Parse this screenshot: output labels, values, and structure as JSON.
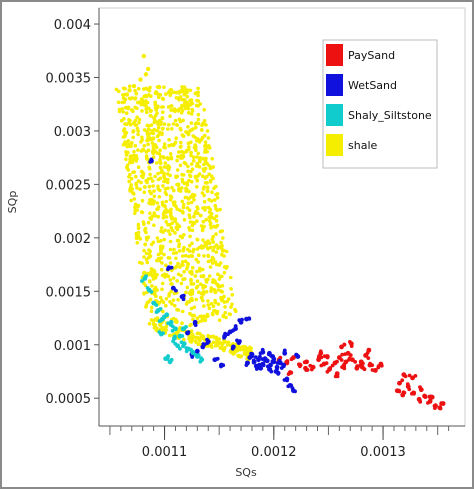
{
  "chart_data": {
    "type": "scatter",
    "xlabel": "SQs",
    "ylabel": "SQp",
    "xlim": [
      0.00104,
      0.001375
    ],
    "ylim": [
      0.00024,
      0.00415
    ],
    "xticks": [
      {
        "value": 0.0011,
        "label": "0.0011"
      },
      {
        "value": 0.0012,
        "label": "0.0012"
      },
      {
        "value": 0.0013,
        "label": "0.0013"
      }
    ],
    "yticks": [
      {
        "value": 0.0005,
        "label": "0.0005"
      },
      {
        "value": 0.001,
        "label": "0.001"
      },
      {
        "value": 0.0015,
        "label": "0.0015"
      },
      {
        "value": 0.002,
        "label": "0.002"
      },
      {
        "value": 0.0025,
        "label": "0.0025"
      },
      {
        "value": 0.003,
        "label": "0.003"
      },
      {
        "value": 0.0035,
        "label": "0.0035"
      },
      {
        "value": 0.004,
        "label": "0.004"
      }
    ],
    "grid": false,
    "legend_position": "top-right",
    "series": [
      {
        "name": "PaySand",
        "color": "#ee1111",
        "points": [
          [
            0.001205,
            0.00086
          ],
          [
            0.001212,
            0.00083
          ],
          [
            0.001218,
            0.00088
          ],
          [
            0.001224,
            0.00081
          ],
          [
            0.00123,
            0.00084
          ],
          [
            0.001236,
            0.00079
          ],
          [
            0.001241,
            0.00086
          ],
          [
            0.001246,
            0.00082
          ],
          [
            0.001251,
            0.00077
          ],
          [
            0.001256,
            0.00083
          ],
          [
            0.00126,
            0.00088
          ],
          [
            0.001264,
            0.0008
          ],
          [
            0.001268,
            0.00092
          ],
          [
            0.001272,
            0.00086
          ],
          [
            0.001276,
            0.00078
          ],
          [
            0.00128,
            0.00084
          ],
          [
            0.001284,
            0.0009
          ],
          [
            0.001288,
            0.00081
          ],
          [
            0.001293,
            0.00076
          ],
          [
            0.001298,
            0.00082
          ],
          [
            0.001262,
            0.00098
          ],
          [
            0.001271,
            0.00101
          ],
          [
            0.001243,
            0.00092
          ],
          [
            0.001229,
            0.00078
          ],
          [
            0.001287,
            0.00095
          ],
          [
            0.001258,
            0.00073
          ],
          [
            0.001215,
            0.00074
          ],
          [
            0.001249,
            0.00089
          ],
          [
            0.001266,
            0.00084
          ],
          [
            0.001281,
            0.00079
          ],
          [
            0.001313,
            0.00057
          ],
          [
            0.001318,
            0.00053
          ],
          [
            0.001323,
            0.00061
          ],
          [
            0.001328,
            0.00055
          ],
          [
            0.001333,
            0.00049
          ],
          [
            0.001338,
            0.00052
          ],
          [
            0.001343,
            0.00047
          ],
          [
            0.001348,
            0.00043
          ],
          [
            0.001352,
            0.00041
          ],
          [
            0.001355,
            0.00045
          ],
          [
            0.001319,
            0.00072
          ],
          [
            0.001327,
            0.00069
          ],
          [
            0.001335,
            0.00058
          ],
          [
            0.001345,
            0.00051
          ],
          [
            0.001315,
            0.00064
          ]
        ]
      },
      {
        "name": "WetSand",
        "color": "#1111dd",
        "points": [
          [
            0.001178,
            0.00088
          ],
          [
            0.001182,
            0.00084
          ],
          [
            0.001186,
            0.00086
          ],
          [
            0.00119,
            0.00082
          ],
          [
            0.001194,
            0.00085
          ],
          [
            0.001197,
            0.00081
          ],
          [
            0.0012,
            0.00084
          ],
          [
            0.001203,
            0.00079
          ],
          [
            0.001206,
            0.00083
          ],
          [
            0.001184,
            0.0008
          ],
          [
            0.001188,
            0.00078
          ],
          [
            0.001192,
            0.00087
          ],
          [
            0.001196,
            0.00077
          ],
          [
            0.001199,
            0.00089
          ],
          [
            0.001202,
            0.00075
          ],
          [
            0.00118,
            0.00091
          ],
          [
            0.001176,
            0.00083
          ],
          [
            0.001209,
            0.00081
          ],
          [
            0.001212,
            0.00068
          ],
          [
            0.001215,
            0.00062
          ],
          [
            0.001218,
            0.00057
          ],
          [
            0.001155,
            0.00108
          ],
          [
            0.00116,
            0.00112
          ],
          [
            0.001165,
            0.00115
          ],
          [
            0.00117,
            0.00121
          ],
          [
            0.001175,
            0.00124
          ],
          [
            0.001168,
            0.00102
          ],
          [
            0.001163,
            0.00098
          ],
          [
            0.00114,
            0.00103
          ],
          [
            0.001135,
            0.00098
          ],
          [
            0.00113,
            0.00094
          ],
          [
            0.001125,
            0.00091
          ],
          [
            0.001121,
            0.00111
          ],
          [
            0.001128,
            0.00121
          ],
          [
            0.001146,
            0.00086
          ],
          [
            0.001152,
            0.00081
          ],
          [
            0.001104,
            0.00172
          ],
          [
            0.001116,
            0.00145
          ],
          [
            0.00121,
            0.00092
          ],
          [
            0.001222,
            0.00089
          ],
          [
            0.001088,
            0.00272
          ],
          [
            0.001108,
            0.00153
          ],
          [
            0.00119,
            0.00093
          ],
          [
            0.001196,
            0.00092
          ]
        ]
      },
      {
        "name": "Shaly_Siltstone",
        "color": "#11cccc",
        "points": [
          [
            0.001082,
            0.00162
          ],
          [
            0.001086,
            0.00151
          ],
          [
            0.00109,
            0.00139
          ],
          [
            0.001094,
            0.00132
          ],
          [
            0.001098,
            0.00124
          ],
          [
            0.001102,
            0.00128
          ],
          [
            0.001106,
            0.00121
          ],
          [
            0.00111,
            0.00115
          ],
          [
            0.001114,
            0.00108
          ],
          [
            0.001118,
            0.00101
          ],
          [
            0.001122,
            0.00096
          ],
          [
            0.001126,
            0.00093
          ],
          [
            0.001101,
            0.00087
          ],
          [
            0.001105,
            0.00084
          ],
          [
            0.001112,
            0.00099
          ],
          [
            0.00113,
            0.00089
          ],
          [
            0.001134,
            0.00086
          ],
          [
            0.001097,
            0.0011
          ],
          [
            0.001109,
            0.00106
          ],
          [
            0.001117,
            0.00115
          ]
        ]
      },
      {
        "name": "shale",
        "color": "#f6ee00",
        "cluster": {
          "count": 1150,
          "x_range": [
            0.001055,
            0.001168
          ],
          "y_range": [
            0.00118,
            0.00342
          ],
          "tail_x_range": [
            0.00109,
            0.00118
          ],
          "tail_y_range": [
            0.00085,
            0.00125
          ]
        },
        "points": [
          [
            0.001081,
            0.0037
          ],
          [
            0.001083,
            0.00353
          ],
          [
            0.001085,
            0.00358
          ],
          [
            0.001078,
            0.00348
          ],
          [
            0.001072,
            0.00342
          ],
          [
            0.001068,
            0.00338
          ],
          [
            0.001095,
            0.00341
          ],
          [
            0.001118,
            0.00339
          ]
        ]
      }
    ]
  }
}
